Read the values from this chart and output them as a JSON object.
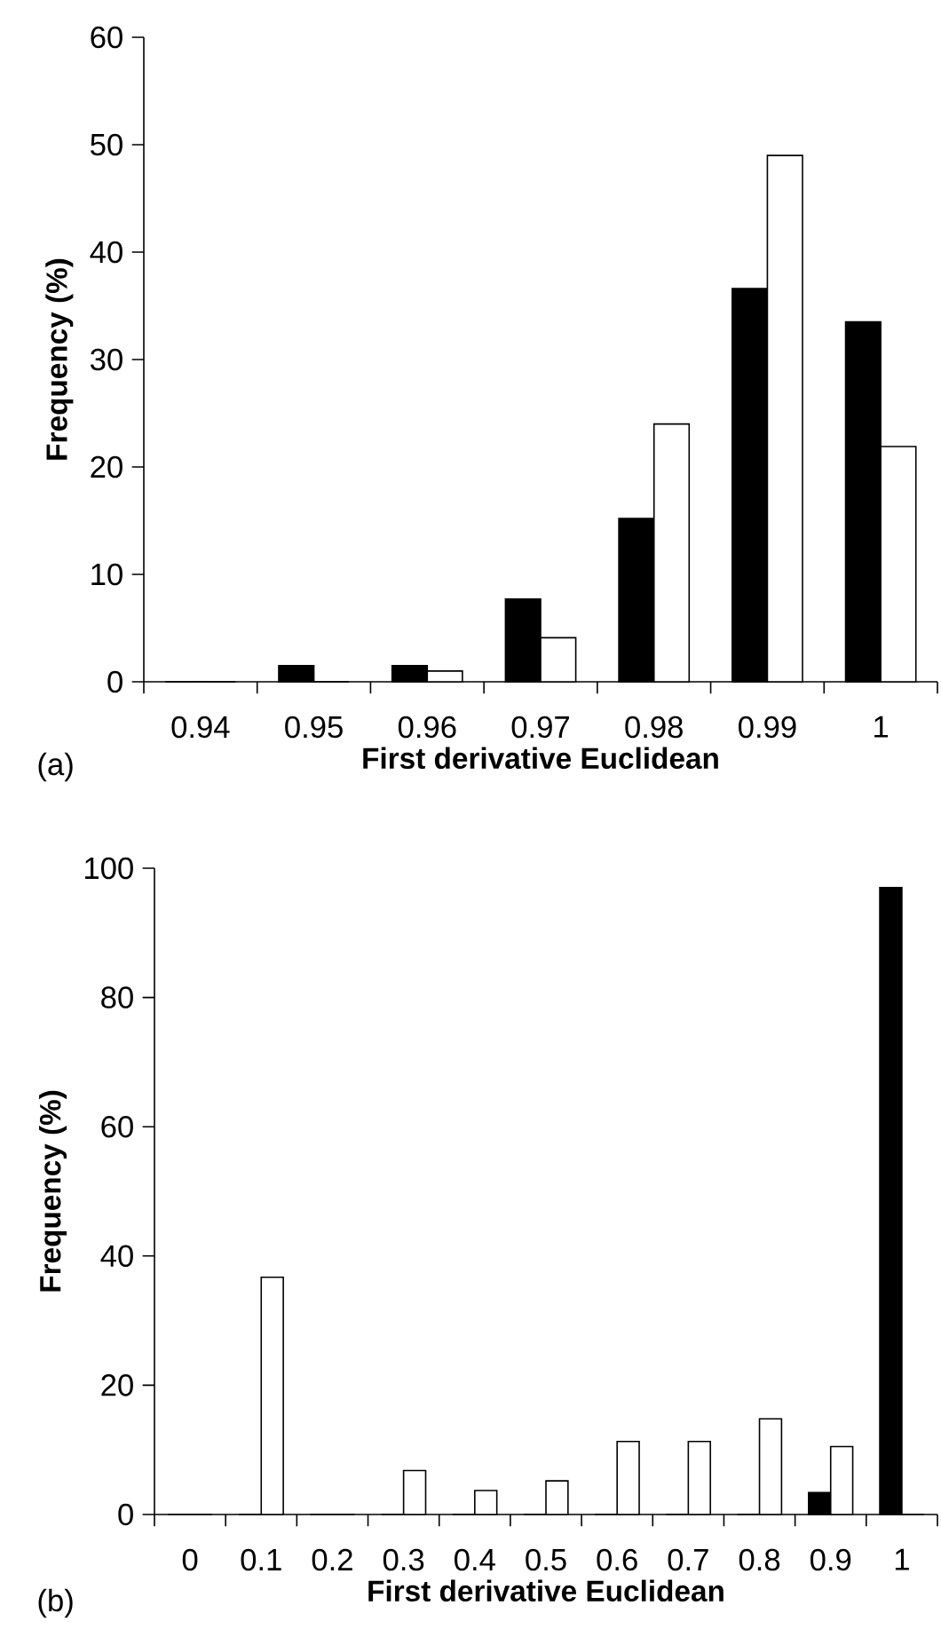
{
  "chart_data": [
    {
      "type": "bar",
      "categories": [
        "0.94",
        "0.95",
        "0.96",
        "0.97",
        "0.98",
        "0.99",
        "1"
      ],
      "series": [
        {
          "color": "#000000",
          "values": [
            0,
            1.5,
            1.5,
            7.7,
            15.2,
            36.6,
            33.5
          ]
        },
        {
          "color": "#ffffff",
          "values": [
            0,
            0,
            1.0,
            4.1,
            24.0,
            49.0,
            21.9
          ]
        }
      ],
      "ylim": [
        0,
        60
      ],
      "yticks": [
        0,
        10,
        20,
        30,
        40,
        50,
        60
      ],
      "xlabel": "First derivative Euclidean",
      "ylabel": "Frequency (%)",
      "annotations": [
        "(a)"
      ]
    },
    {
      "type": "bar",
      "categories": [
        "0",
        "0.1",
        "0.2",
        "0.3",
        "0.4",
        "0.5",
        "0.6",
        "0.7",
        "0.8",
        "0.9",
        "1"
      ],
      "series": [
        {
          "color": "#000000",
          "values": [
            0,
            0,
            0,
            0,
            0,
            0,
            0,
            0,
            0,
            3.4,
            97.0
          ]
        },
        {
          "color": "#ffffff",
          "values": [
            0,
            36.7,
            0,
            6.8,
            3.7,
            5.2,
            11.3,
            11.3,
            14.8,
            10.5,
            0
          ]
        }
      ],
      "ylim": [
        0,
        100
      ],
      "yticks": [
        0,
        20,
        40,
        60,
        80,
        100
      ],
      "xlabel": "First derivative Euclidean",
      "ylabel": "Frequency (%)",
      "annotations": [
        "(b)"
      ]
    }
  ]
}
